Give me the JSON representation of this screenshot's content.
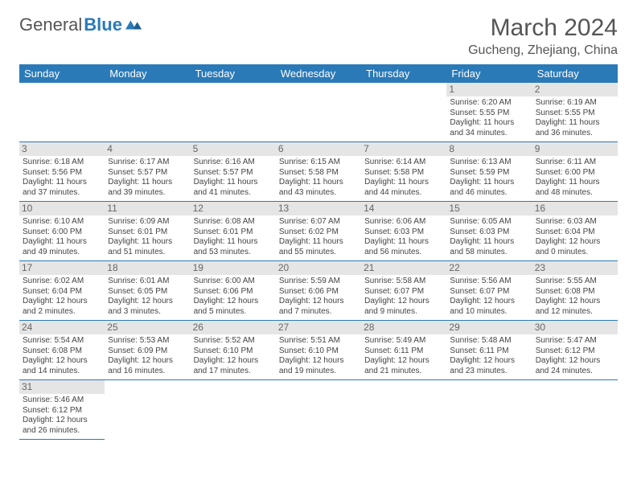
{
  "logo": {
    "general": "General",
    "blue": "Blue"
  },
  "title": "March 2024",
  "location": "Gucheng, Zhejiang, China",
  "weekday_headers": [
    "Sunday",
    "Monday",
    "Tuesday",
    "Wednesday",
    "Thursday",
    "Friday",
    "Saturday"
  ],
  "colors": {
    "header_bg": "#2a7ab8",
    "daynum_bg": "#e5e5e5",
    "rule": "#2a7ab8"
  },
  "weeks": [
    [
      {
        "empty": true
      },
      {
        "empty": true
      },
      {
        "empty": true
      },
      {
        "empty": true
      },
      {
        "empty": true
      },
      {
        "n": "1",
        "sr": "Sunrise: 6:20 AM",
        "ss": "Sunset: 5:55 PM",
        "dl": "Daylight: 11 hours and 34 minutes."
      },
      {
        "n": "2",
        "sr": "Sunrise: 6:19 AM",
        "ss": "Sunset: 5:55 PM",
        "dl": "Daylight: 11 hours and 36 minutes."
      }
    ],
    [
      {
        "n": "3",
        "sr": "Sunrise: 6:18 AM",
        "ss": "Sunset: 5:56 PM",
        "dl": "Daylight: 11 hours and 37 minutes."
      },
      {
        "n": "4",
        "sr": "Sunrise: 6:17 AM",
        "ss": "Sunset: 5:57 PM",
        "dl": "Daylight: 11 hours and 39 minutes."
      },
      {
        "n": "5",
        "sr": "Sunrise: 6:16 AM",
        "ss": "Sunset: 5:57 PM",
        "dl": "Daylight: 11 hours and 41 minutes."
      },
      {
        "n": "6",
        "sr": "Sunrise: 6:15 AM",
        "ss": "Sunset: 5:58 PM",
        "dl": "Daylight: 11 hours and 43 minutes."
      },
      {
        "n": "7",
        "sr": "Sunrise: 6:14 AM",
        "ss": "Sunset: 5:58 PM",
        "dl": "Daylight: 11 hours and 44 minutes."
      },
      {
        "n": "8",
        "sr": "Sunrise: 6:13 AM",
        "ss": "Sunset: 5:59 PM",
        "dl": "Daylight: 11 hours and 46 minutes."
      },
      {
        "n": "9",
        "sr": "Sunrise: 6:11 AM",
        "ss": "Sunset: 6:00 PM",
        "dl": "Daylight: 11 hours and 48 minutes."
      }
    ],
    [
      {
        "n": "10",
        "sr": "Sunrise: 6:10 AM",
        "ss": "Sunset: 6:00 PM",
        "dl": "Daylight: 11 hours and 49 minutes."
      },
      {
        "n": "11",
        "sr": "Sunrise: 6:09 AM",
        "ss": "Sunset: 6:01 PM",
        "dl": "Daylight: 11 hours and 51 minutes."
      },
      {
        "n": "12",
        "sr": "Sunrise: 6:08 AM",
        "ss": "Sunset: 6:01 PM",
        "dl": "Daylight: 11 hours and 53 minutes."
      },
      {
        "n": "13",
        "sr": "Sunrise: 6:07 AM",
        "ss": "Sunset: 6:02 PM",
        "dl": "Daylight: 11 hours and 55 minutes."
      },
      {
        "n": "14",
        "sr": "Sunrise: 6:06 AM",
        "ss": "Sunset: 6:03 PM",
        "dl": "Daylight: 11 hours and 56 minutes."
      },
      {
        "n": "15",
        "sr": "Sunrise: 6:05 AM",
        "ss": "Sunset: 6:03 PM",
        "dl": "Daylight: 11 hours and 58 minutes."
      },
      {
        "n": "16",
        "sr": "Sunrise: 6:03 AM",
        "ss": "Sunset: 6:04 PM",
        "dl": "Daylight: 12 hours and 0 minutes."
      }
    ],
    [
      {
        "n": "17",
        "sr": "Sunrise: 6:02 AM",
        "ss": "Sunset: 6:04 PM",
        "dl": "Daylight: 12 hours and 2 minutes."
      },
      {
        "n": "18",
        "sr": "Sunrise: 6:01 AM",
        "ss": "Sunset: 6:05 PM",
        "dl": "Daylight: 12 hours and 3 minutes."
      },
      {
        "n": "19",
        "sr": "Sunrise: 6:00 AM",
        "ss": "Sunset: 6:06 PM",
        "dl": "Daylight: 12 hours and 5 minutes."
      },
      {
        "n": "20",
        "sr": "Sunrise: 5:59 AM",
        "ss": "Sunset: 6:06 PM",
        "dl": "Daylight: 12 hours and 7 minutes."
      },
      {
        "n": "21",
        "sr": "Sunrise: 5:58 AM",
        "ss": "Sunset: 6:07 PM",
        "dl": "Daylight: 12 hours and 9 minutes."
      },
      {
        "n": "22",
        "sr": "Sunrise: 5:56 AM",
        "ss": "Sunset: 6:07 PM",
        "dl": "Daylight: 12 hours and 10 minutes."
      },
      {
        "n": "23",
        "sr": "Sunrise: 5:55 AM",
        "ss": "Sunset: 6:08 PM",
        "dl": "Daylight: 12 hours and 12 minutes."
      }
    ],
    [
      {
        "n": "24",
        "sr": "Sunrise: 5:54 AM",
        "ss": "Sunset: 6:08 PM",
        "dl": "Daylight: 12 hours and 14 minutes."
      },
      {
        "n": "25",
        "sr": "Sunrise: 5:53 AM",
        "ss": "Sunset: 6:09 PM",
        "dl": "Daylight: 12 hours and 16 minutes."
      },
      {
        "n": "26",
        "sr": "Sunrise: 5:52 AM",
        "ss": "Sunset: 6:10 PM",
        "dl": "Daylight: 12 hours and 17 minutes."
      },
      {
        "n": "27",
        "sr": "Sunrise: 5:51 AM",
        "ss": "Sunset: 6:10 PM",
        "dl": "Daylight: 12 hours and 19 minutes."
      },
      {
        "n": "28",
        "sr": "Sunrise: 5:49 AM",
        "ss": "Sunset: 6:11 PM",
        "dl": "Daylight: 12 hours and 21 minutes."
      },
      {
        "n": "29",
        "sr": "Sunrise: 5:48 AM",
        "ss": "Sunset: 6:11 PM",
        "dl": "Daylight: 12 hours and 23 minutes."
      },
      {
        "n": "30",
        "sr": "Sunrise: 5:47 AM",
        "ss": "Sunset: 6:12 PM",
        "dl": "Daylight: 12 hours and 24 minutes."
      }
    ],
    [
      {
        "n": "31",
        "sr": "Sunrise: 5:46 AM",
        "ss": "Sunset: 6:12 PM",
        "dl": "Daylight: 12 hours and 26 minutes."
      },
      {
        "empty": true
      },
      {
        "empty": true
      },
      {
        "empty": true
      },
      {
        "empty": true
      },
      {
        "empty": true
      },
      {
        "empty": true
      }
    ]
  ]
}
